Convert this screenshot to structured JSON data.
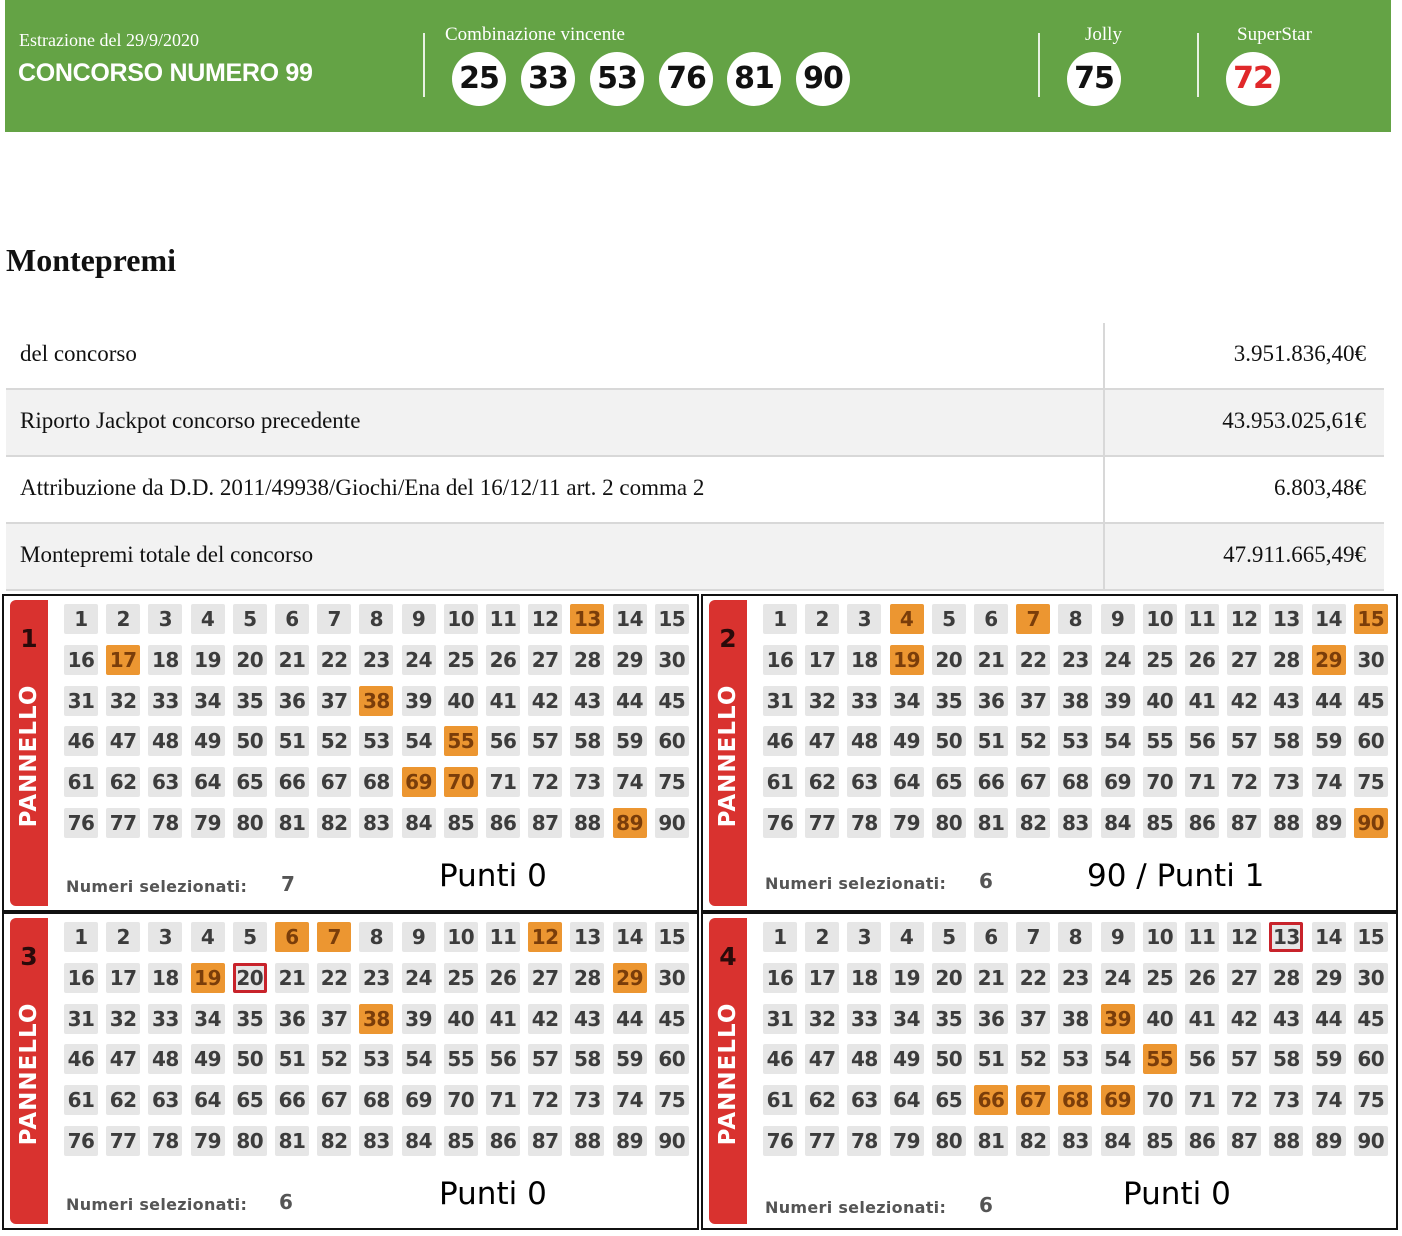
{
  "header": {
    "draw_date": "Estrazione del 29/9/2020",
    "contest": "CONCORSO NUMERO 99",
    "combo_label": "Combinazione vincente",
    "combo": [
      "25",
      "33",
      "53",
      "76",
      "81",
      "90"
    ],
    "jolly_label": "Jolly",
    "jolly": "75",
    "superstar_label": "SuperStar",
    "superstar": "72",
    "colors": {
      "bar": "#64a345",
      "superstar": "#e0282a"
    }
  },
  "montepremi": {
    "title": "Montepremi",
    "rows": [
      {
        "label": "del concorso",
        "value": "3.951.836,40€"
      },
      {
        "label": "Riporto Jackpot concorso precedente",
        "value": "43.953.025,61€"
      },
      {
        "label": "Attribuzione da D.D. 2011/49938/Giochi/Ena del 16/12/11 art. 2 comma 2",
        "value": "6.803,48€"
      },
      {
        "label": "Montepremi totale del concorso",
        "value": "47.911.665,49€"
      }
    ]
  },
  "panels": [
    {
      "number": "1",
      "tab_word": "PANNELLO",
      "selected_label": "Numeri selezionati:",
      "selected_count": "7",
      "selected": [
        13,
        17,
        38,
        55,
        69,
        70,
        89
      ],
      "hits": [],
      "result": "Punti 0"
    },
    {
      "number": "2",
      "tab_word": "PANNELLO",
      "selected_label": "Numeri selezionati:",
      "selected_count": "6",
      "selected": [
        4,
        7,
        15,
        19,
        29,
        90
      ],
      "hits": [],
      "result": "90 / Punti 1"
    },
    {
      "number": "3",
      "tab_word": "PANNELLO",
      "selected_label": "Numeri selezionati:",
      "selected_count": "6",
      "selected": [
        6,
        7,
        12,
        19,
        29,
        38
      ],
      "hits": [
        20
      ],
      "result": "Punti 0"
    },
    {
      "number": "4",
      "tab_word": "PANNELLO",
      "selected_label": "Numeri selezionati:",
      "selected_count": "6",
      "selected": [
        39,
        55,
        66,
        67,
        68,
        69
      ],
      "hits": [
        13
      ],
      "result": "Punti 0"
    }
  ],
  "colors": {
    "selected_cell": "#ec9631",
    "hit_border": "#c8232b",
    "panel_tab": "#d9322f"
  }
}
